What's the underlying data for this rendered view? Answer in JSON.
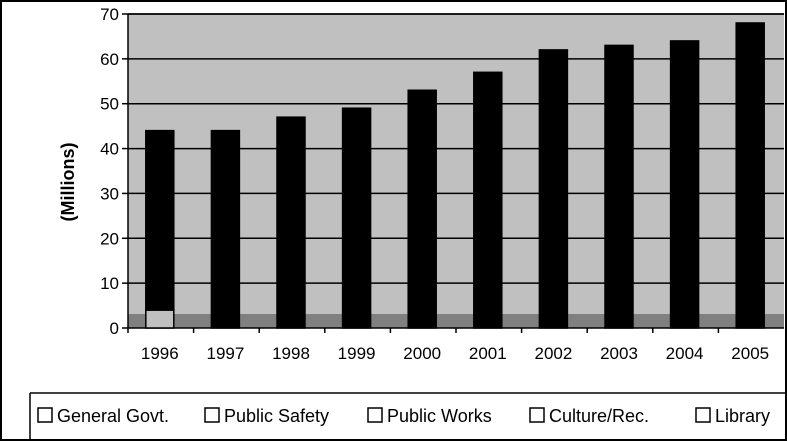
{
  "chart_data": {
    "type": "bar",
    "stacked": true,
    "categories": [
      "1996",
      "1997",
      "1998",
      "1999",
      "2000",
      "2001",
      "2002",
      "2003",
      "2004",
      "2005"
    ],
    "ylabel": "(Millions)",
    "ylim": [
      0,
      70
    ],
    "yticks": [
      "0",
      "10",
      "20",
      "30",
      "40",
      "50",
      "60",
      "70"
    ],
    "grid": true,
    "legend_position": "bottom",
    "series": [
      {
        "name": "General Govt.",
        "values": [
          4,
          0,
          0,
          0,
          0,
          0,
          0,
          0,
          0,
          0
        ]
      },
      {
        "name": "Public Safety",
        "values": [
          40,
          44,
          47,
          49,
          53,
          57,
          62,
          63,
          64,
          68
        ]
      },
      {
        "name": "Public Works",
        "values": [
          0,
          0,
          0,
          0,
          0,
          0,
          0,
          0,
          0,
          0
        ]
      },
      {
        "name": "Culture/Rec.",
        "values": [
          0,
          0,
          0,
          0,
          0,
          0,
          0,
          0,
          0,
          0
        ]
      },
      {
        "name": "Library",
        "values": [
          0,
          0,
          0,
          0,
          0,
          0,
          0,
          0,
          0,
          0
        ]
      }
    ],
    "colors": {
      "plot_background": "#c0c0c0",
      "floor": "#808080",
      "bar_fill": "#000000",
      "general_govt_fill": "#c0c0c0",
      "legend_swatch": "#ffffff"
    }
  }
}
